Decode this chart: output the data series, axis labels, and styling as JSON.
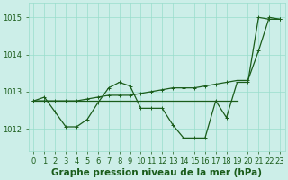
{
  "bg_color": "#cceee8",
  "grid_color": "#99ddcc",
  "line_color": "#1a5c1a",
  "marker_color": "#1a5c1a",
  "xlabel": "Graphe pression niveau de la mer (hPa)",
  "xlabel_fontsize": 7.5,
  "ylabel_ticks": [
    1012,
    1013,
    1014,
    1015
  ],
  "xlim": [
    -0.5,
    23.5
  ],
  "ylim": [
    1011.4,
    1015.4
  ],
  "xtick_labels": [
    "0",
    "1",
    "2",
    "3",
    "4",
    "5",
    "6",
    "7",
    "8",
    "9",
    "10",
    "11",
    "12",
    "13",
    "14",
    "15",
    "16",
    "17",
    "18",
    "19",
    "20",
    "21",
    "22",
    "23"
  ],
  "series1_x": [
    0,
    1,
    2,
    3,
    4,
    5,
    6,
    7,
    8,
    9,
    10,
    11,
    12,
    13,
    14,
    15,
    16,
    17,
    18,
    19,
    20,
    21,
    22,
    23
  ],
  "series1_y": [
    1012.75,
    1012.85,
    1012.45,
    1012.05,
    1012.05,
    1012.25,
    1012.7,
    1013.1,
    1013.25,
    1013.15,
    1012.55,
    1012.55,
    1012.55,
    1012.1,
    1011.75,
    1011.75,
    1011.75,
    1012.75,
    1012.3,
    1013.25,
    1013.25,
    1015.0,
    1014.95,
    1014.95
  ],
  "series2_x": [
    0,
    1,
    2,
    3,
    4,
    5,
    6,
    7,
    8,
    9,
    10,
    11,
    12,
    13,
    14,
    15,
    16,
    17,
    18,
    19,
    20,
    21,
    22,
    23
  ],
  "series2_y": [
    1012.75,
    1012.75,
    1012.75,
    1012.75,
    1012.75,
    1012.8,
    1012.85,
    1012.9,
    1012.9,
    1012.9,
    1012.95,
    1013.0,
    1013.05,
    1013.1,
    1013.1,
    1013.1,
    1013.15,
    1013.2,
    1013.25,
    1013.3,
    1013.3,
    1014.1,
    1015.0,
    1014.95
  ],
  "series3_x": [
    0,
    19
  ],
  "series3_y": [
    1012.75,
    1012.75
  ],
  "tick_fontsize": 6.0
}
